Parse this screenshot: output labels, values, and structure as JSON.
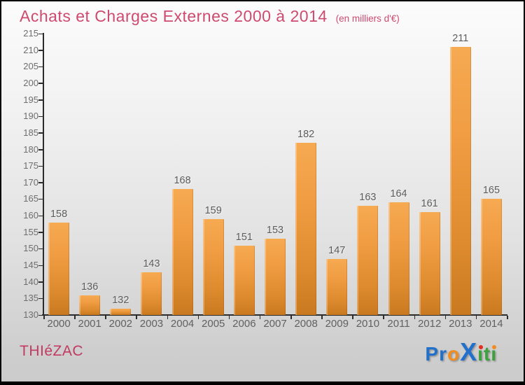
{
  "header": {
    "title": "Achats et Charges Externes 2000 à 2014",
    "subtitle": "(en milliers d'€)",
    "title_color": "#ce4a6e"
  },
  "footer": {
    "location": "THIéZAC",
    "location_color": "#c23a62"
  },
  "logo": {
    "name": "Proxiti",
    "letters": [
      {
        "char": "P",
        "color": "#2170cb",
        "large": false,
        "dot": null
      },
      {
        "char": "r",
        "color": "#2170cb",
        "large": false,
        "dot": null
      },
      {
        "char": "o",
        "color": "#f28c1e",
        "large": false,
        "dot": null
      },
      {
        "char": "X",
        "color": "#2170cb",
        "large": true,
        "dot": null
      },
      {
        "char": "ı",
        "color": "#3da23d",
        "large": false,
        "dot": "#e0301e"
      },
      {
        "char": "t",
        "color": "#3da23d",
        "large": false,
        "dot": null
      },
      {
        "char": "ı",
        "color": "#3da23d",
        "large": false,
        "dot": "#f28c1e"
      }
    ]
  },
  "chart_data": {
    "type": "bar",
    "title": "Achats et Charges Externes 2000 à 2014",
    "subtitle": "(en milliers d'€)",
    "categories": [
      "2000",
      "2001",
      "2002",
      "2003",
      "2004",
      "2005",
      "2006",
      "2007",
      "2008",
      "2009",
      "2010",
      "2011",
      "2012",
      "2013",
      "2014"
    ],
    "values": [
      158,
      136,
      132,
      143,
      168,
      159,
      151,
      153,
      182,
      147,
      163,
      164,
      161,
      211,
      165
    ],
    "xlabel": "",
    "ylabel": "",
    "ylim": [
      130,
      215
    ],
    "ytick_step": 5,
    "grid": false,
    "legend": false,
    "bar_color_top": "#f6aa52",
    "bar_color_bottom": "#c9791f",
    "axis_color": "#2b2b2b",
    "label_color": "#5c5c5c"
  }
}
